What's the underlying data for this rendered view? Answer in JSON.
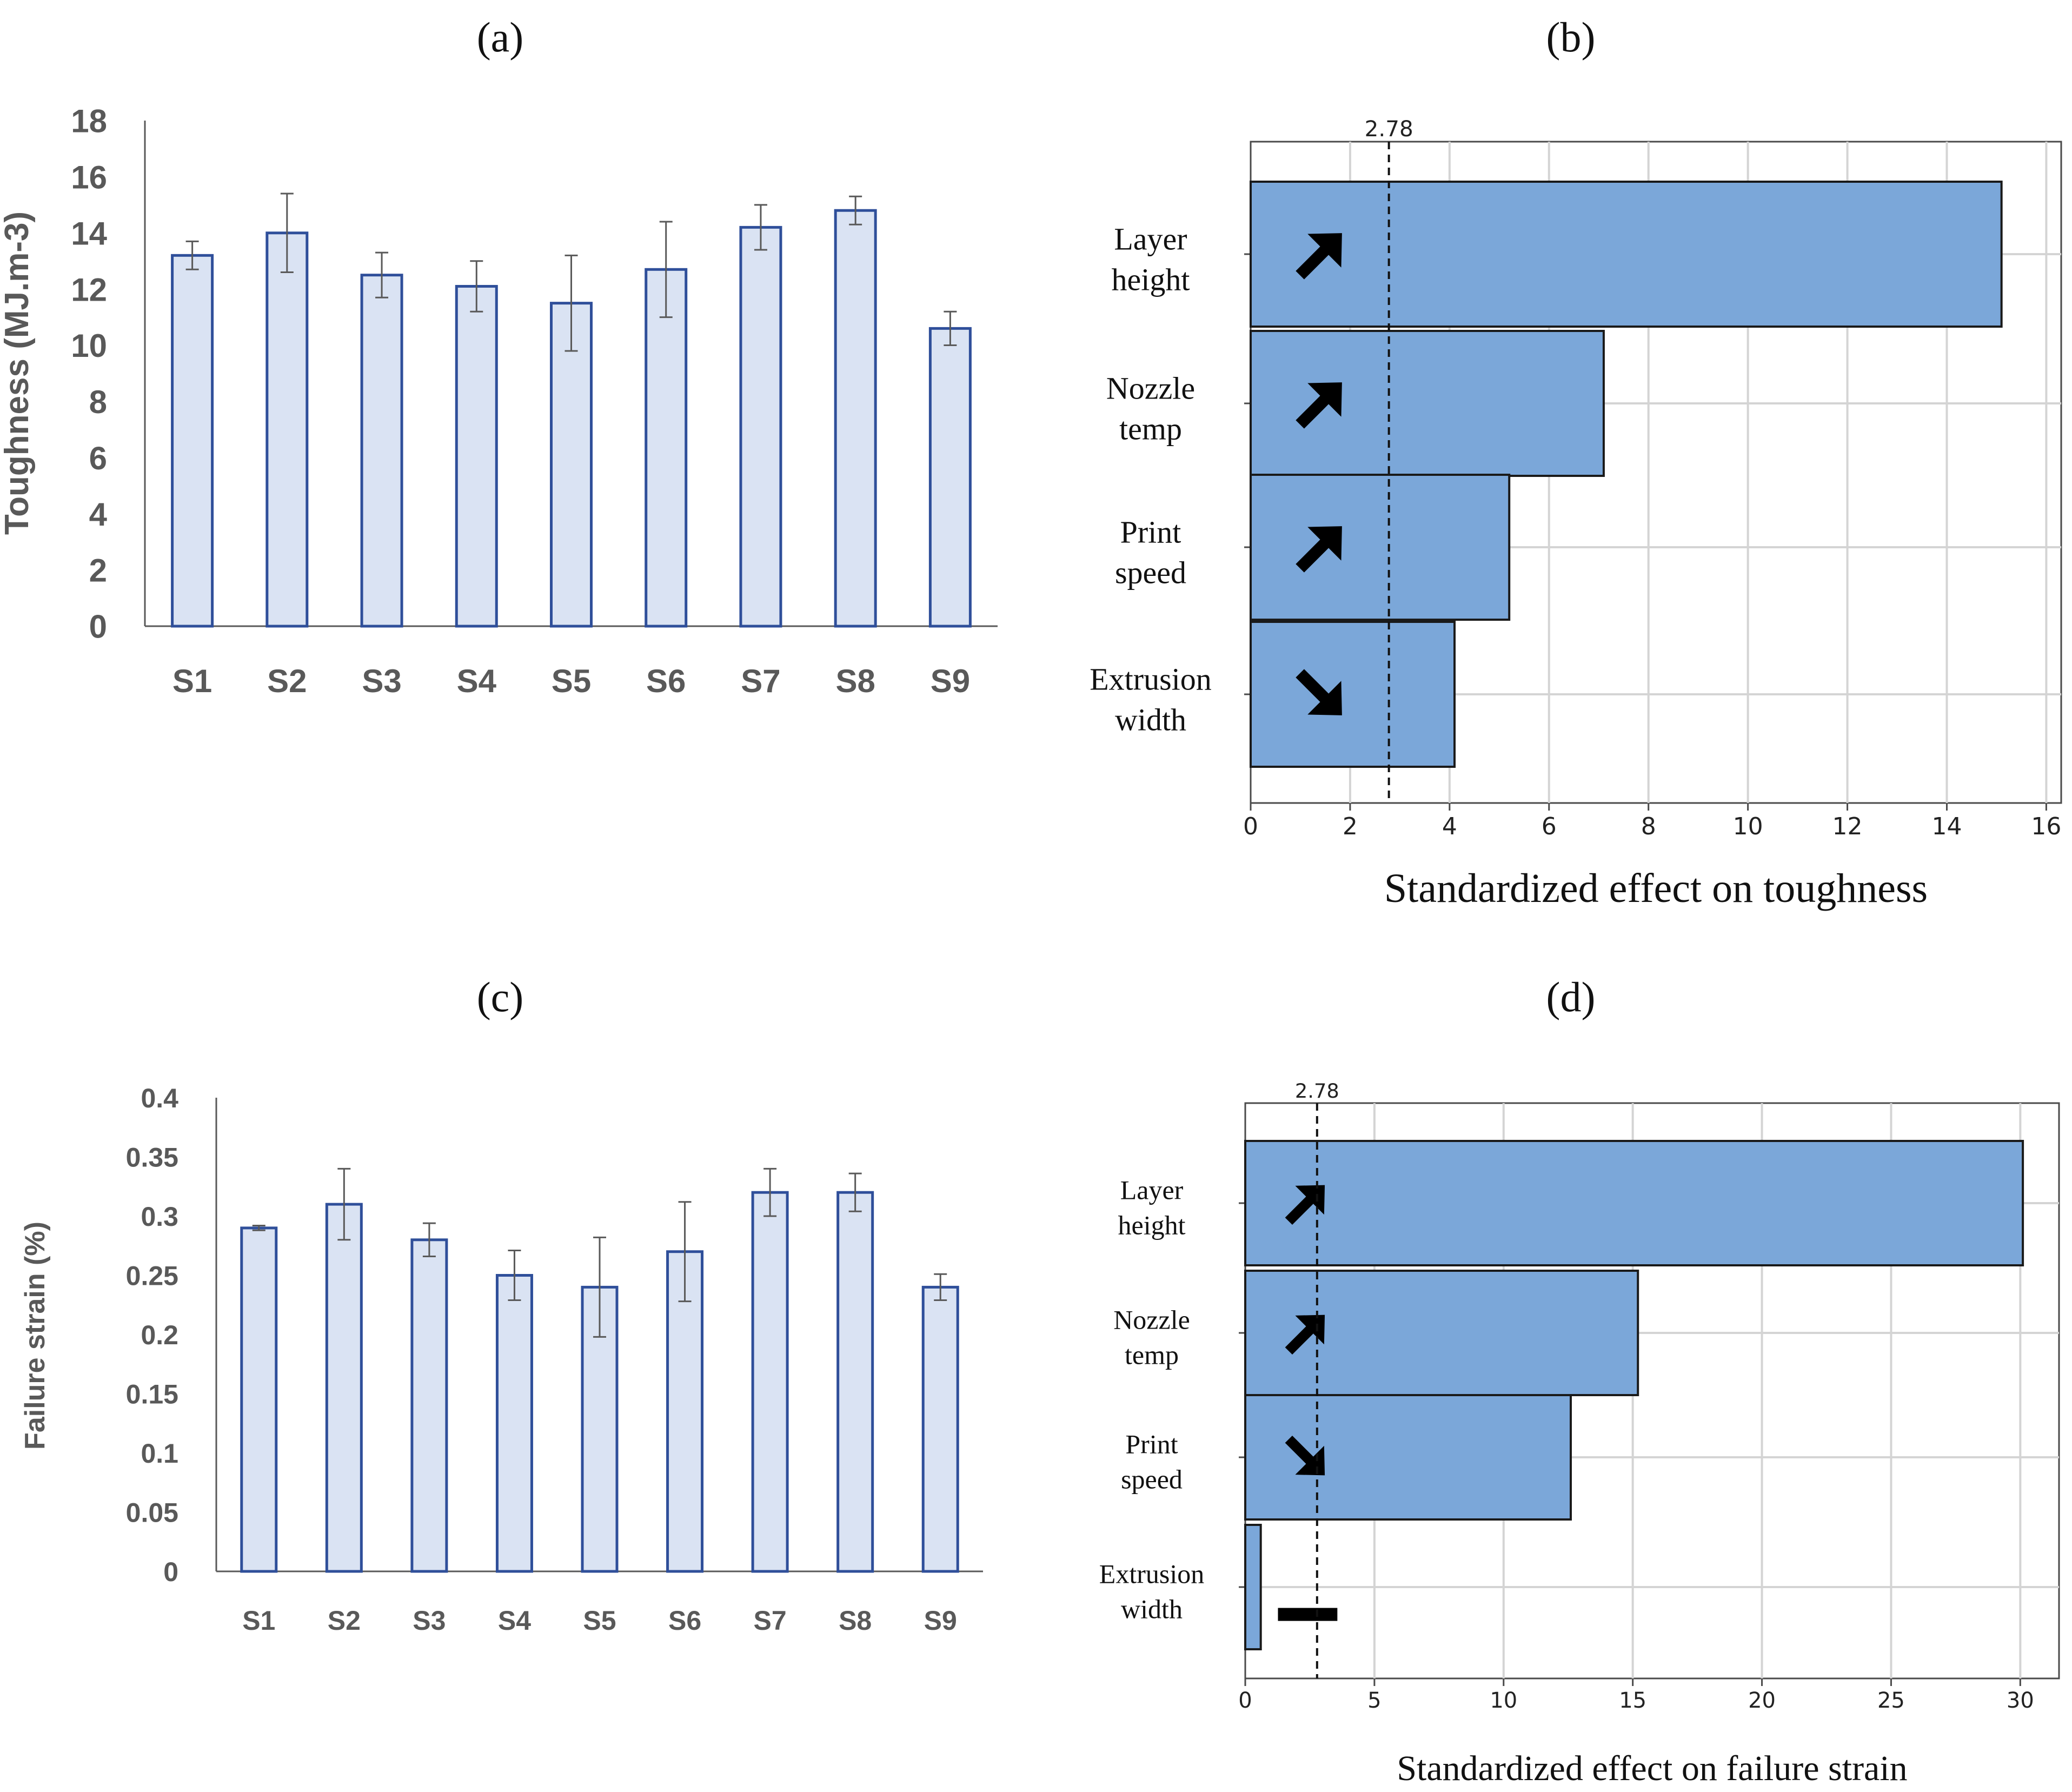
{
  "chart_data": [
    {
      "id": "a",
      "panel_label": "(a)",
      "type": "bar",
      "title": "",
      "xlabel": "",
      "ylabel": "Toughness (MJ.m-3)",
      "categories": [
        "S1",
        "S2",
        "S3",
        "S4",
        "S5",
        "S6",
        "S7",
        "S8",
        "S9"
      ],
      "values": [
        13.2,
        14.0,
        12.5,
        12.1,
        11.5,
        12.7,
        14.2,
        14.8,
        10.6
      ],
      "errors": [
        0.5,
        1.4,
        0.8,
        0.9,
        1.7,
        1.7,
        0.8,
        0.5,
        0.6
      ],
      "ylim": [
        0,
        18
      ],
      "yticks": [
        "0",
        "2",
        "4",
        "6",
        "8",
        "10",
        "12",
        "14",
        "16",
        "18"
      ],
      "grid": false,
      "colors": {
        "bar_fill": "#dae3f3",
        "bar_stroke": "#2f4f9a",
        "error": "#595959"
      }
    },
    {
      "id": "b",
      "panel_label": "(b)",
      "type": "bar",
      "orientation": "horizontal",
      "title": "",
      "xlabel": "Standardized effect on toughness",
      "ylabel": "",
      "categories": [
        "Layer height",
        "Nozzle temp",
        "Print speed",
        "Extrusion width"
      ],
      "values": [
        15.1,
        7.1,
        5.2,
        4.1
      ],
      "effect_direction": [
        "up",
        "up",
        "up",
        "down"
      ],
      "reference_line": 2.78,
      "reference_label": "2.78",
      "xlim": [
        0,
        16.3
      ],
      "xticks": [
        "0",
        "2",
        "4",
        "6",
        "8",
        "10",
        "12",
        "14",
        "16"
      ],
      "grid": true,
      "colors": {
        "bar_fill": "#7ba7d9",
        "bar_stroke": "#1a1a1a",
        "grid": "#d4d4d4",
        "arrow": "#000000"
      }
    },
    {
      "id": "c",
      "panel_label": "(c)",
      "type": "bar",
      "title": "",
      "xlabel": "",
      "ylabel": "Failure strain (%)",
      "categories": [
        "S1",
        "S2",
        "S3",
        "S4",
        "S5",
        "S6",
        "S7",
        "S8",
        "S9"
      ],
      "values": [
        0.29,
        0.31,
        0.28,
        0.25,
        0.24,
        0.27,
        0.32,
        0.32,
        0.24
      ],
      "errors": [
        0.002,
        0.03,
        0.014,
        0.021,
        0.042,
        0.042,
        0.02,
        0.016,
        0.011
      ],
      "ylim": [
        0,
        0.4
      ],
      "yticks": [
        "0",
        "0.05",
        "0.1",
        "0.15",
        "0.2",
        "0.25",
        "0.3",
        "0.35",
        "0.4"
      ],
      "grid": false,
      "colors": {
        "bar_fill": "#dae3f3",
        "bar_stroke": "#2f4f9a",
        "error": "#595959"
      }
    },
    {
      "id": "d",
      "panel_label": "(d)",
      "type": "bar",
      "orientation": "horizontal",
      "title": "",
      "xlabel": "Standardized effect on failure strain",
      "ylabel": "",
      "categories": [
        "Layer height",
        "Nozzle temp",
        "Print speed",
        "Extrusion width"
      ],
      "values": [
        30.1,
        15.2,
        12.6,
        0.6
      ],
      "effect_direction": [
        "up",
        "up",
        "down",
        "none"
      ],
      "reference_line": 2.78,
      "reference_label": "2.78",
      "xlim": [
        0,
        31.5
      ],
      "xticks": [
        "0",
        "5",
        "10",
        "15",
        "20",
        "25",
        "30"
      ],
      "grid": true,
      "colors": {
        "bar_fill": "#7ba7d9",
        "bar_stroke": "#1a1a1a",
        "grid": "#d4d4d4",
        "arrow": "#000000"
      }
    }
  ]
}
